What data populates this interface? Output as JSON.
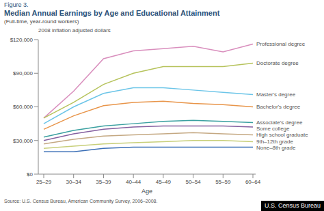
{
  "chart_data": {
    "type": "line",
    "title": "Median Annual Earnings by Age and Educational Attainment",
    "subtitle": "(Full-time, year-round workers)",
    "y_label": "2008 inflation adjusted dollars",
    "x_label": "Age",
    "annotations": [
      "Figure 3.",
      "Source: U.S. Census Bureau, American Community Survey, 2006–2008.",
      "U.S. Census Bureau"
    ],
    "categories": [
      "25–29",
      "30–34",
      "35–39",
      "40–44",
      "45–49",
      "50–54",
      "55–59",
      "60–64"
    ],
    "series": [
      {
        "name": "Professional degree",
        "color": "#d98ebd",
        "values": [
          50000,
          74000,
          103000,
          110000,
          112000,
          114000,
          109000,
          116000
        ]
      },
      {
        "name": "Doctorate degree",
        "color": "#b6c35c",
        "values": [
          50000,
          64000,
          80000,
          90000,
          96000,
          96000,
          96000,
          99000
        ]
      },
      {
        "name": "Master's degree",
        "color": "#6cc5e8",
        "values": [
          45000,
          60000,
          72000,
          77000,
          77000,
          75000,
          73000,
          71000
        ]
      },
      {
        "name": "Bachelor's degree",
        "color": "#e8954a",
        "values": [
          40000,
          52000,
          61000,
          64000,
          65000,
          63000,
          62000,
          60000
        ]
      },
      {
        "name": "Associate's degree",
        "color": "#3aa0a0",
        "values": [
          33000,
          39000,
          43000,
          45000,
          47000,
          48000,
          47000,
          46000
        ]
      },
      {
        "name": "Some college",
        "color": "#8560a0",
        "values": [
          30000,
          36000,
          40000,
          42000,
          43000,
          43000,
          43000,
          42000
        ]
      },
      {
        "name": "High school graduate",
        "color": "#c4a882",
        "values": [
          27000,
          31000,
          34000,
          35000,
          36000,
          37000,
          36000,
          35000
        ]
      },
      {
        "name": "9th–12th grade",
        "color": "#c8cf7a",
        "values": [
          23000,
          25000,
          27000,
          28000,
          29000,
          30000,
          30000,
          29000
        ]
      },
      {
        "name": "None–8th grade",
        "color": "#3b6fb6",
        "values": [
          20000,
          20000,
          23000,
          24000,
          24000,
          24000,
          24000,
          24000
        ]
      }
    ],
    "ylim": [
      0,
      120000
    ],
    "yticks": [
      {
        "value": 0,
        "label": "$0"
      },
      {
        "value": 30000,
        "label": "$30,000"
      },
      {
        "value": 60000,
        "label": "$60,000"
      },
      {
        "value": 90000,
        "label": "$90,000"
      },
      {
        "value": 120000,
        "label": "$120,000"
      }
    ],
    "grid": false
  }
}
